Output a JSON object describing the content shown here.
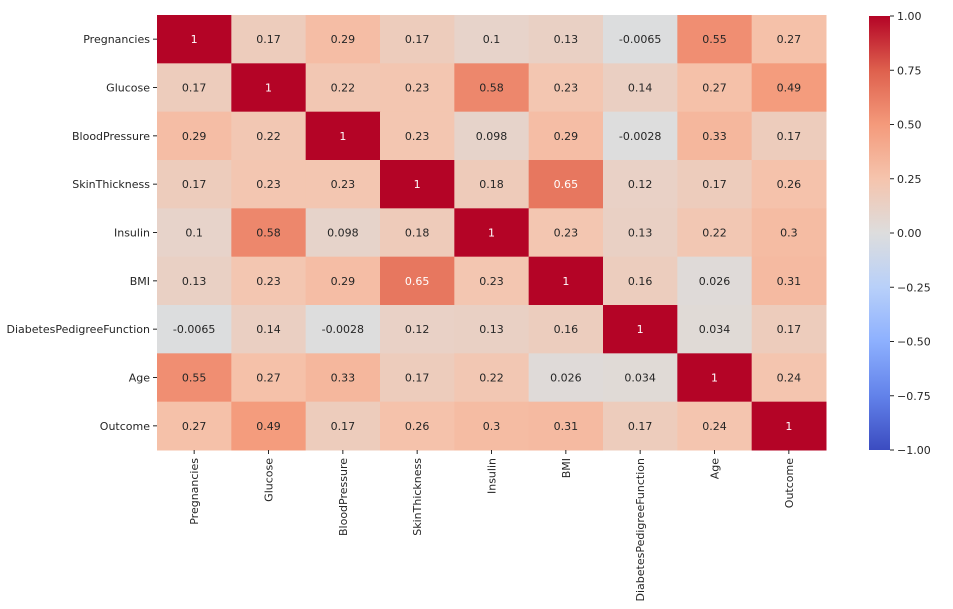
{
  "chart_data": {
    "type": "heatmap",
    "title": "",
    "xlabel": "",
    "ylabel": "",
    "labels": [
      "Pregnancies",
      "Glucose",
      "BloodPressure",
      "SkinThickness",
      "Insulin",
      "BMI",
      "DiabetesPedigreeFunction",
      "Age",
      "Outcome"
    ],
    "values": [
      [
        1,
        0.17,
        0.29,
        0.17,
        0.1,
        0.13,
        -0.0065,
        0.55,
        0.27
      ],
      [
        0.17,
        1,
        0.22,
        0.23,
        0.58,
        0.23,
        0.14,
        0.27,
        0.49
      ],
      [
        0.29,
        0.22,
        1,
        0.23,
        0.098,
        0.29,
        -0.0028,
        0.33,
        0.17
      ],
      [
        0.17,
        0.23,
        0.23,
        1,
        0.18,
        0.65,
        0.12,
        0.17,
        0.26
      ],
      [
        0.1,
        0.58,
        0.098,
        0.18,
        1,
        0.23,
        0.13,
        0.22,
        0.3
      ],
      [
        0.13,
        0.23,
        0.29,
        0.65,
        0.23,
        1,
        0.16,
        0.026,
        0.31
      ],
      [
        -0.0065,
        0.14,
        -0.0028,
        0.12,
        0.13,
        0.16,
        1,
        0.034,
        0.17
      ],
      [
        0.55,
        0.27,
        0.33,
        0.17,
        0.22,
        0.026,
        0.034,
        1,
        0.24
      ],
      [
        0.27,
        0.49,
        0.17,
        0.26,
        0.3,
        0.31,
        0.17,
        0.24,
        1
      ]
    ],
    "annotation_text": [
      [
        "1",
        "0.17",
        "0.29",
        "0.17",
        "0.1",
        "0.13",
        "-0.0065",
        "0.55",
        "0.27"
      ],
      [
        "0.17",
        "1",
        "0.22",
        "0.23",
        "0.58",
        "0.23",
        "0.14",
        "0.27",
        "0.49"
      ],
      [
        "0.29",
        "0.22",
        "1",
        "0.23",
        "0.098",
        "0.29",
        "-0.0028",
        "0.33",
        "0.17"
      ],
      [
        "0.17",
        "0.23",
        "0.23",
        "1",
        "0.18",
        "0.65",
        "0.12",
        "0.17",
        "0.26"
      ],
      [
        "0.1",
        "0.58",
        "0.098",
        "0.18",
        "1",
        "0.23",
        "0.13",
        "0.22",
        "0.3"
      ],
      [
        "0.13",
        "0.23",
        "0.29",
        "0.65",
        "0.23",
        "1",
        "0.16",
        "0.026",
        "0.31"
      ],
      [
        "-0.0065",
        "0.14",
        "-0.0028",
        "0.12",
        "0.13",
        "0.16",
        "1",
        "0.034",
        "0.17"
      ],
      [
        "0.55",
        "0.27",
        "0.33",
        "0.17",
        "0.22",
        "0.026",
        "0.034",
        "1",
        "0.24"
      ],
      [
        "0.27",
        "0.49",
        "0.17",
        "0.26",
        "0.3",
        "0.31",
        "0.17",
        "0.24",
        "1"
      ]
    ],
    "colorbar": {
      "vmin": -1,
      "vmax": 1,
      "ticks": [
        1.0,
        0.75,
        0.5,
        0.25,
        0.0,
        -0.25,
        -0.5,
        -0.75,
        -1.0
      ],
      "tick_labels": [
        "1.00",
        "0.75",
        "0.50",
        "0.25",
        "0.00",
        "−0.25",
        "−0.50",
        "−0.75",
        "−1.00"
      ]
    },
    "colormap": "coolwarm",
    "grid": false,
    "legend": "colorbar-right"
  }
}
